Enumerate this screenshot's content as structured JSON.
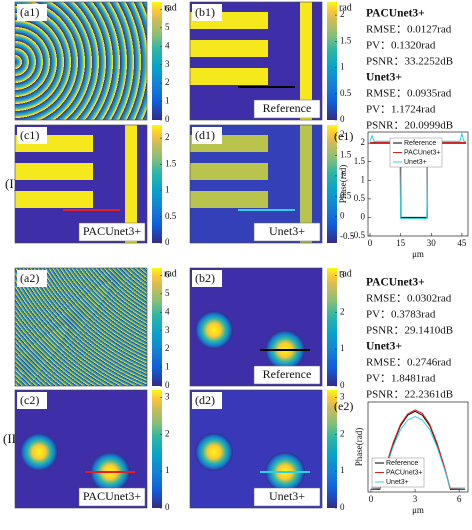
{
  "row_labels": [
    "(I)",
    "(II)"
  ],
  "panels": [
    {
      "label": "(a1)",
      "colorbar": {
        "title": "rad",
        "clim": [
          0,
          6.4
        ],
        "ticks": [
          0,
          1,
          2,
          3,
          4,
          5,
          6
        ]
      }
    },
    {
      "label": "(b1)",
      "caption": "Reference",
      "colorbar": {
        "title": "rad",
        "clim": [
          0,
          2.25
        ],
        "ticks": [
          0,
          0.5,
          1,
          1.5,
          2
        ]
      }
    },
    {
      "label": "(c1)",
      "caption": "PACUnet3+",
      "colorbar": {
        "clim": [
          0,
          2.25
        ],
        "ticks": [
          0,
          0.5,
          1,
          1.5,
          2
        ]
      }
    },
    {
      "label": "(d1)",
      "caption": "Unet3+",
      "colorbar": {
        "clim": [
          -0.65,
          2.25
        ],
        "ticks": [
          -0.5,
          0,
          0.5,
          1,
          1.5,
          2
        ]
      }
    },
    {
      "label": "(a2)",
      "colorbar": {
        "title": "rad",
        "clim": [
          0,
          6.4
        ],
        "ticks": [
          0,
          1,
          2,
          3,
          4,
          5,
          6
        ]
      }
    },
    {
      "label": "(b2)",
      "caption": "Reference",
      "colorbar": {
        "title": "rad",
        "clim": [
          0,
          3.2
        ],
        "ticks": [
          0,
          1,
          2,
          3
        ]
      }
    },
    {
      "label": "(c2)",
      "caption": "PACUnet3+",
      "colorbar": {
        "clim": [
          0,
          3.2
        ],
        "ticks": [
          0,
          1,
          2,
          3
        ]
      }
    },
    {
      "label": "(d2)",
      "caption": "Unet3+",
      "colorbar": {
        "clim": [
          0,
          3.2
        ],
        "ticks": [
          0,
          1,
          2,
          3
        ]
      }
    }
  ],
  "metrics": [
    [
      {
        "heading": "PACUnet3+",
        "lines": [
          "RMSE：0.0127rad",
          "PV：0.1320rad",
          "PSNR：33.2252dB"
        ]
      },
      {
        "heading": "Unet3+",
        "lines": [
          "RMSE：0.0935rad",
          "PV：1.1724rad",
          "PSNR：20.0999dB"
        ]
      }
    ],
    [
      {
        "heading": "PACUnet3+",
        "lines": [
          "RMSE：0.0302rad",
          "PV：0.3783rad",
          "PSNR：29.1410dB"
        ]
      },
      {
        "heading": "Unet3+",
        "lines": [
          "RMSE：0.2746rad",
          "PV：1.8481rad",
          "PSNR：22.2361dB"
        ]
      }
    ]
  ],
  "chart_data": [
    {
      "type": "line",
      "label": "(e1)",
      "x_label": "μm",
      "y_label": "Phase(rad)",
      "xlim": [
        -1,
        48
      ],
      "ylim": [
        -0.5,
        2.3
      ],
      "xticks": [
        0,
        15,
        30,
        45
      ],
      "yticks": [
        -0.5,
        0,
        0.5,
        1,
        1.5,
        2
      ],
      "legend": "top",
      "series": [
        {
          "name": "Reference",
          "color": "#000000",
          "x": [
            0,
            15,
            15,
            28,
            28,
            47
          ],
          "values": [
            2.0,
            2.0,
            0,
            0,
            2.0,
            2.0
          ]
        },
        {
          "name": "PACUnet3+",
          "color": "#e02020",
          "x": [
            0,
            14.7,
            15.2,
            27.8,
            28.3,
            47
          ],
          "values": [
            2.02,
            2.02,
            -0.02,
            -0.02,
            2.02,
            2.02
          ]
        },
        {
          "name": "Unet3+",
          "color": "#30d0e0",
          "x": [
            0,
            1,
            2,
            14.5,
            15,
            27.8,
            28.3,
            44,
            45,
            46,
            47
          ],
          "values": [
            2.05,
            2.2,
            2.05,
            2.05,
            -0.03,
            -0.03,
            2.05,
            2.05,
            2.25,
            2.05,
            2.05
          ]
        }
      ]
    },
    {
      "type": "line",
      "label": "(e2)",
      "x_label": "μm",
      "y_label": "Phase(rad)",
      "xlim": [
        -0.2,
        6.6
      ],
      "ylim": [
        -0.1,
        3.3
      ],
      "xticks": [
        0,
        3,
        6
      ],
      "legend": "bottom-left",
      "series": [
        {
          "name": "Reference",
          "color": "#000000",
          "x": [
            0,
            0.6,
            1,
            1.5,
            2,
            2.5,
            3,
            3.5,
            4,
            4.5,
            5,
            5.4,
            6.4
          ],
          "values": [
            0,
            0,
            0.8,
            1.7,
            2.4,
            2.8,
            2.95,
            2.8,
            2.4,
            1.7,
            0.8,
            0,
            0
          ]
        },
        {
          "name": "PACUnet3+",
          "color": "#e02020",
          "x": [
            0,
            0.6,
            1,
            1.5,
            2,
            2.5,
            3,
            3.5,
            4,
            4.5,
            5,
            5.4,
            6.4
          ],
          "values": [
            0,
            0.02,
            0.85,
            1.75,
            2.45,
            2.85,
            3.0,
            2.87,
            2.45,
            1.75,
            0.85,
            0.02,
            0
          ]
        },
        {
          "name": "Unet3+",
          "color": "#30d0e0",
          "x": [
            0,
            0.6,
            1,
            1.5,
            2,
            2.5,
            3,
            3.5,
            4,
            4.5,
            5,
            5.4,
            6.4
          ],
          "values": [
            0.05,
            0.05,
            0.75,
            1.6,
            2.25,
            2.62,
            2.75,
            2.62,
            2.25,
            1.6,
            0.75,
            0.05,
            0.05
          ]
        }
      ]
    }
  ]
}
